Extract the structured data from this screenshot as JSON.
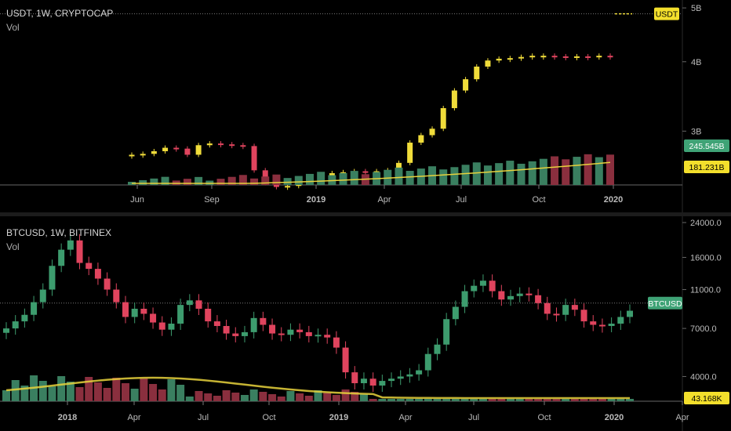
{
  "top_chart": {
    "symbol_title": "USDT, 1W, CRYPTOCAP",
    "indicator": "Vol",
    "price_badge": "USDT",
    "volume_badge": "245.545B",
    "volume_ma_badge": "181.231B",
    "y_ticks": [
      "5B",
      "4B",
      "3B"
    ],
    "x_ticks": [
      "Jun",
      "Sep",
      "2019",
      "Apr",
      "Jul",
      "Oct",
      "2020"
    ]
  },
  "bottom_chart": {
    "symbol_title": "BTCUSD, 1W, BITFINEX",
    "indicator": "Vol",
    "price_badge": "BTCUSD",
    "volume_badge": "43.168K",
    "y_ticks": [
      "24000.0",
      "16000.0",
      "11000.0",
      "7000.0",
      "4000.0"
    ],
    "x_ticks": [
      "2018",
      "Apr",
      "Jul",
      "Oct",
      "2019",
      "Apr",
      "Jul",
      "Oct",
      "2020",
      "Apr"
    ]
  },
  "colors": {
    "up_top": "#f0dc3a",
    "down": "#e0445e",
    "up_bottom": "#3d9c6e",
    "vol_up": "#3a7f60",
    "vol_down": "#8a2f3e",
    "vol_ma": "#e8d23c",
    "badge_yellow": "#f3df2c",
    "badge_green": "#3fa376"
  },
  "chart_data": [
    {
      "type": "candlestick",
      "title": "USDT, 1W, CRYPTOCAP",
      "y_scale": "log",
      "ylim": [
        "2.4B",
        "5.1B"
      ],
      "series": [
        {
          "name": "USDT",
          "values_B": [
            2.72,
            2.73,
            2.76,
            2.8,
            2.79,
            2.72,
            2.83,
            2.85,
            2.84,
            2.83,
            2.82,
            2.55,
            2.42,
            2.38,
            2.39,
            2.43,
            2.45,
            2.49,
            2.52,
            2.53,
            2.54,
            2.53,
            2.54,
            2.55,
            2.63,
            2.86,
            2.95,
            3.03,
            3.3,
            3.55,
            3.72,
            3.92,
            4.02,
            4.05,
            4.06,
            4.08,
            4.1,
            4.1,
            4.09,
            4.08,
            4.09,
            4.08,
            4.1,
            4.09
          ]
        }
      ],
      "x_range": [
        "2018-05",
        "2020-01"
      ]
    },
    {
      "type": "candlestick",
      "title": "BTCUSD, 1W, BITFINEX",
      "y_scale": "log",
      "ylim": [
        3000,
        24000
      ],
      "series": [
        {
          "name": "BTCUSD",
          "values": [
            7000,
            7600,
            8200,
            9500,
            11000,
            14500,
            17500,
            19500,
            15000,
            14000,
            12500,
            11000,
            9500,
            8000,
            8800,
            8300,
            7500,
            6900,
            7400,
            9200,
            9700,
            8800,
            7600,
            7200,
            6600,
            6400,
            6700,
            7900,
            7300,
            6600,
            6500,
            6900,
            6700,
            6400,
            6500,
            6300,
            5600,
            4200,
            3700,
            3900,
            3600,
            3800,
            3900,
            4000,
            4100,
            4300,
            5200,
            5800,
            7800,
            9000,
            10800,
            11500,
            12200,
            10800,
            9800,
            10200,
            10500,
            10300,
            9400,
            8300,
            8200,
            9200,
            8700,
            7600,
            7300,
            7200,
            7400,
            8000,
            8600
          ]
        }
      ],
      "x_range": [
        "2017-10",
        "2020-04"
      ]
    }
  ]
}
